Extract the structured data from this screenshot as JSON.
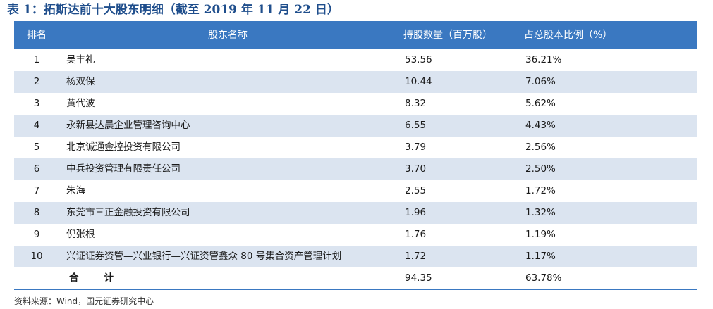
{
  "title": "表 1：拓斯达前十大股东明细（截至 2019 年 11 月 22 日）",
  "table": {
    "headers": [
      "排名",
      "股东名称",
      "持股数量（百万股）",
      "占总股本比例（%）"
    ],
    "rows": [
      {
        "rank": "1",
        "name": "吴丰礼",
        "shares": "53.56",
        "ratio": "36.21%"
      },
      {
        "rank": "2",
        "name": "杨双保",
        "shares": "10.44",
        "ratio": "7.06%"
      },
      {
        "rank": "3",
        "name": "黄代波",
        "shares": "8.32",
        "ratio": "5.62%"
      },
      {
        "rank": "4",
        "name": "永新县达晨企业管理咨询中心",
        "shares": "6.55",
        "ratio": "4.43%"
      },
      {
        "rank": "5",
        "name": "北京诚通金控投资有限公司",
        "shares": "3.79",
        "ratio": "2.56%"
      },
      {
        "rank": "6",
        "name": "中兵投资管理有限责任公司",
        "shares": "3.70",
        "ratio": "2.50%"
      },
      {
        "rank": "7",
        "name": "朱海",
        "shares": "2.55",
        "ratio": "1.72%"
      },
      {
        "rank": "8",
        "name": "东莞市三正金融投资有限公司",
        "shares": "1.96",
        "ratio": "1.32%"
      },
      {
        "rank": "9",
        "name": "倪张根",
        "shares": "1.76",
        "ratio": "1.19%"
      },
      {
        "rank": "10",
        "name": "兴证证券资管—兴业银行—兴证资管鑫众 80 号集合资产管理计划",
        "shares": "1.72",
        "ratio": "1.17%"
      }
    ],
    "total": {
      "label_a": "合",
      "label_b": "计",
      "shares": "94.35",
      "ratio": "63.78%"
    }
  },
  "source": "资料来源：Wind，国元证券研究中心",
  "colors": {
    "header_bg": "#3a78c1",
    "alt_row_bg": "#dbe4f0",
    "title": "#1f4e8c"
  }
}
